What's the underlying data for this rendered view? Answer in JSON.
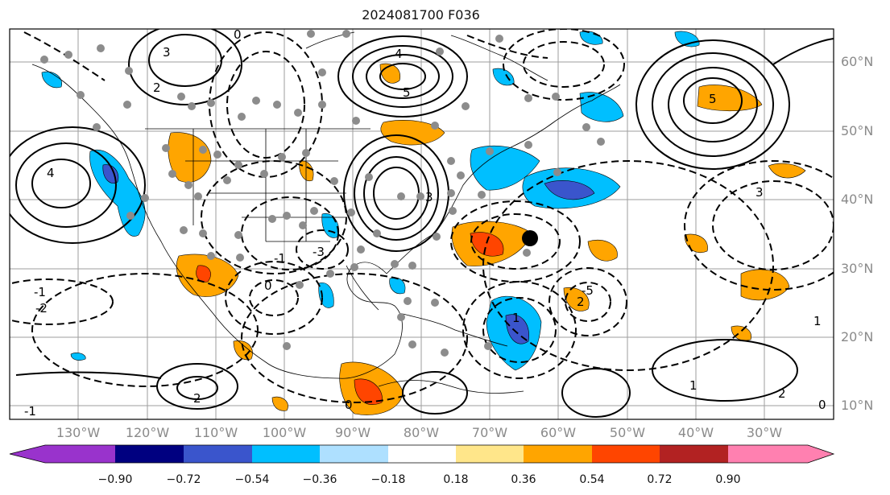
{
  "title": "2024081700 F036",
  "lat_labels": [
    "60°N",
    "50°N",
    "40°N",
    "30°N",
    "20°N",
    "10°N"
  ],
  "lon_labels": [
    "130°W",
    "120°W",
    "110°W",
    "100°W",
    "90°W",
    "80°W",
    "70°W",
    "60°W",
    "50°W",
    "40°W",
    "30°W"
  ],
  "colorbar": {
    "ticks": [
      "−0.90",
      "−0.72",
      "−0.54",
      "−0.36",
      "−0.18",
      "0.18",
      "0.36",
      "0.54",
      "0.72",
      "0.90"
    ],
    "colors": [
      "#9933cc",
      "#000080",
      "#3a55cc",
      "#00bfff",
      "#aee0ff",
      "#ffffff",
      "#ffe68a",
      "#ffa500",
      "#ff4500",
      "#b22222",
      "#ff80b0"
    ]
  },
  "contour_labels": [
    "5",
    "5",
    "4",
    "4",
    "3",
    "3",
    "3",
    "2",
    "2",
    "2",
    "2",
    "1",
    "1",
    "1",
    "0",
    "0",
    "0",
    "0",
    "-1",
    "-1",
    "-1",
    "-2",
    "-3",
    "-5"
  ],
  "colors": {
    "positive_fill": "#ffa500",
    "strong_positive_fill": "#ff4500",
    "negative_fill": "#00bfff",
    "strong_negative_fill": "#3a55cc",
    "station_dot": "#8c8c8c",
    "grid": "#9e9e9e"
  }
}
